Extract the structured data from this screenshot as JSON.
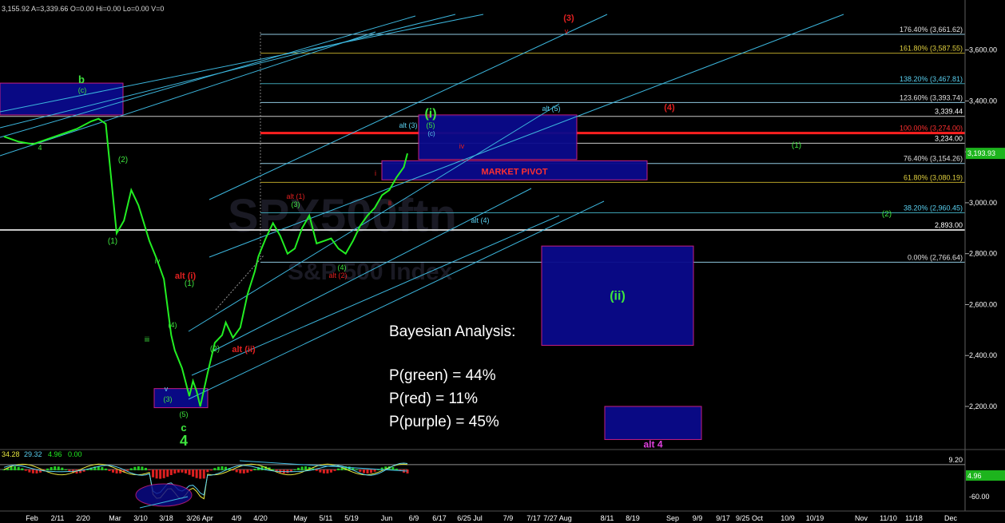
{
  "header": {
    "values_text": "3,155.92  A=3,339.66  O=0.00      Hi=0.00       Lo=0.00       V=0",
    "indicator_a": "34.28",
    "indicator_b": "29.32",
    "indicator_c": "4.96",
    "indicator_d": "0.00"
  },
  "watermark": {
    "line1": "SPX500ftn",
    "line2": "S&P 500 Index"
  },
  "bayesian": {
    "title": "Bayesian Analysis:",
    "green": "P(green) = 44%",
    "red": "P(red) = 11%",
    "purple": "P(purple) = 45%"
  },
  "colors": {
    "background": "#000000",
    "price": "#22ee22",
    "channel": "#3cb6dd",
    "fib_line": "#8fc8df",
    "fib_red": "#ff2020",
    "fib_gold": "#b4a028",
    "box_fill": "#0a0a8c",
    "box_border": "#d0208a",
    "wave_green": "#3ee63e",
    "wave_red": "#e02020",
    "wave_cyan": "#5ad0f0",
    "wave_magenta": "#e040e0",
    "current_price_box": "#1db41d",
    "oscillator_price_box": "#1db41d"
  },
  "chart_data": {
    "type": "line",
    "title": "",
    "xlabel": "",
    "ylabel": "",
    "ylim": [
      2040,
      3740
    ],
    "x_ticks": [
      "Feb",
      "2/11",
      "2/20",
      "Mar",
      "3/10",
      "3/18",
      "3/26 Apr",
      "4/9",
      "4/20",
      "May",
      "5/11",
      "5/19",
      "Jun",
      "6/9",
      "6/17",
      "6/25 Jul",
      "7/9",
      "7/17",
      "7/27 Aug",
      "8/11",
      "8/19",
      "Sep",
      "9/9",
      "9/17",
      "9/25 Oct",
      "10/9",
      "10/19",
      "Nov",
      "11/10",
      "11/18",
      "Dec"
    ],
    "y_ticks": [
      "3,600.00",
      "3,400.00",
      "3,200.00",
      "3,000.00",
      "2,800.00",
      "2,600.00",
      "2,400.00",
      "2,200.00"
    ],
    "y_tick_values": [
      3600,
      3400,
      3200,
      3000,
      2800,
      2600,
      2400,
      2200
    ],
    "current_price": 3193.93,
    "current_price_label": "3,193.93",
    "price_series": [
      [
        0,
        3260
      ],
      [
        4,
        3240
      ],
      [
        8,
        3230
      ],
      [
        12,
        3250
      ],
      [
        16,
        3270
      ],
      [
        20,
        3290
      ],
      [
        24,
        3320
      ],
      [
        26,
        3330
      ],
      [
        28,
        3310
      ],
      [
        31,
        2880
      ],
      [
        33,
        2930
      ],
      [
        35,
        3050
      ],
      [
        37,
        2990
      ],
      [
        40,
        2850
      ],
      [
        42,
        2780
      ],
      [
        44,
        2700
      ],
      [
        46,
        2480
      ],
      [
        47,
        2420
      ],
      [
        49,
        2350
      ],
      [
        51,
        2240
      ],
      [
        52,
        2300
      ],
      [
        53,
        2260
      ],
      [
        54,
        2200
      ],
      [
        56,
        2330
      ],
      [
        58,
        2450
      ],
      [
        60,
        2480
      ],
      [
        61,
        2530
      ],
      [
        63,
        2470
      ],
      [
        65,
        2510
      ],
      [
        67,
        2640
      ],
      [
        69,
        2730
      ],
      [
        70,
        2790
      ],
      [
        72,
        2860
      ],
      [
        74,
        2920
      ],
      [
        76,
        2870
      ],
      [
        78,
        2800
      ],
      [
        80,
        2820
      ],
      [
        82,
        2900
      ],
      [
        84,
        2950
      ],
      [
        86,
        2840
      ],
      [
        88,
        2850
      ],
      [
        90,
        2860
      ],
      [
        92,
        2820
      ],
      [
        94,
        2800
      ],
      [
        96,
        2850
      ],
      [
        98,
        2910
      ],
      [
        100,
        2950
      ],
      [
        102,
        2980
      ],
      [
        104,
        3030
      ],
      [
        106,
        3050
      ],
      [
        108,
        3100
      ],
      [
        110,
        3140
      ],
      [
        111,
        3193.93
      ]
    ],
    "series": [
      {
        "name": "",
        "values": "price_series"
      }
    ],
    "fib_levels": [
      {
        "label": "176.40% (3,661.62)",
        "value": 3661.62
      },
      {
        "label": "161.80% (3,587.55)",
        "value": 3587.55
      },
      {
        "label": "138.20% (3,467.81)",
        "value": 3467.81
      },
      {
        "label": "123.60% (3,393.74)",
        "value": 3393.74
      },
      {
        "label": "100.00% (3,274.00)",
        "value": 3274.0
      },
      {
        "label": "76.40% (3,154.26)",
        "value": 3154.26
      },
      {
        "label": "61.80% (3,080.19)",
        "value": 3080.19
      },
      {
        "label": "38.20% (2,960.45)",
        "value": 2960.45
      },
      {
        "label": "0.00% (2,766.64)",
        "value": 2766.64
      }
    ],
    "price_levels": [
      {
        "label": "3,339.44",
        "value": 3339.44
      },
      {
        "label": "3,234.00",
        "value": 3234.0
      },
      {
        "label": "2,893.00",
        "value": 2893.0
      }
    ],
    "boxes": [
      {
        "label": "",
        "value_top": 3470,
        "value_bottom": 3345
      },
      {
        "label": "",
        "value_top": 3345,
        "value_bottom": 3170
      },
      {
        "label": "MARKET PIVOT",
        "value_top": 3165,
        "value_bottom": 3090
      },
      {
        "label": "(ii)",
        "value_top": 2830,
        "value_bottom": 2440
      },
      {
        "label": "",
        "value_top": 2270,
        "value_bottom": 2195
      },
      {
        "label": "alt 4",
        "value_top": 2200,
        "value_bottom": 2070
      }
    ],
    "wave_labels": [
      {
        "text": "b",
        "color": "green"
      },
      {
        "text": "(c)",
        "color": "green"
      },
      {
        "text": "4",
        "color": "green"
      },
      {
        "text": "(2)",
        "color": "green"
      },
      {
        "text": "(1)",
        "color": "green"
      },
      {
        "text": "iv",
        "color": "green"
      },
      {
        "text": "iii",
        "color": "green"
      },
      {
        "text": "(4)",
        "color": "green"
      },
      {
        "text": "v",
        "color": "cyan"
      },
      {
        "text": "(3)",
        "color": "green"
      },
      {
        "text": "(5)",
        "color": "green"
      },
      {
        "text": "c",
        "color": "green"
      },
      {
        "text": "4",
        "color": "green"
      },
      {
        "text": "alt (i)",
        "color": "red"
      },
      {
        "text": "(1)",
        "color": "green"
      },
      {
        "text": "(2)",
        "color": "green"
      },
      {
        "text": "alt (ii)",
        "color": "red"
      },
      {
        "text": "alt (1)",
        "color": "red"
      },
      {
        "text": "(3)",
        "color": "green"
      },
      {
        "text": "(4)",
        "color": "green"
      },
      {
        "text": "alt (2)",
        "color": "red"
      },
      {
        "text": "i",
        "color": "red"
      },
      {
        "text": "ii",
        "color": "red"
      },
      {
        "text": "iii",
        "color": "red"
      },
      {
        "text": "(i)",
        "color": "green"
      },
      {
        "text": "(5)",
        "color": "green"
      },
      {
        "text": "(c)",
        "color": "cyan"
      },
      {
        "text": "alt (3)",
        "color": "cyan"
      },
      {
        "text": "iv",
        "color": "red"
      },
      {
        "text": "alt (5)",
        "color": "cyan"
      },
      {
        "text": "alt (4)",
        "color": "cyan"
      },
      {
        "text": "(3)",
        "color": "red"
      },
      {
        "text": "v",
        "color": "red"
      },
      {
        "text": "(4)",
        "color": "red"
      },
      {
        "text": "(1)",
        "color": "green"
      },
      {
        "text": "(2)",
        "color": "green"
      }
    ],
    "oscillator": {
      "ylim": [
        -75,
        30
      ],
      "y_ticks": [
        "9.20",
        "-60.00"
      ],
      "current_label": "4.96"
    }
  }
}
